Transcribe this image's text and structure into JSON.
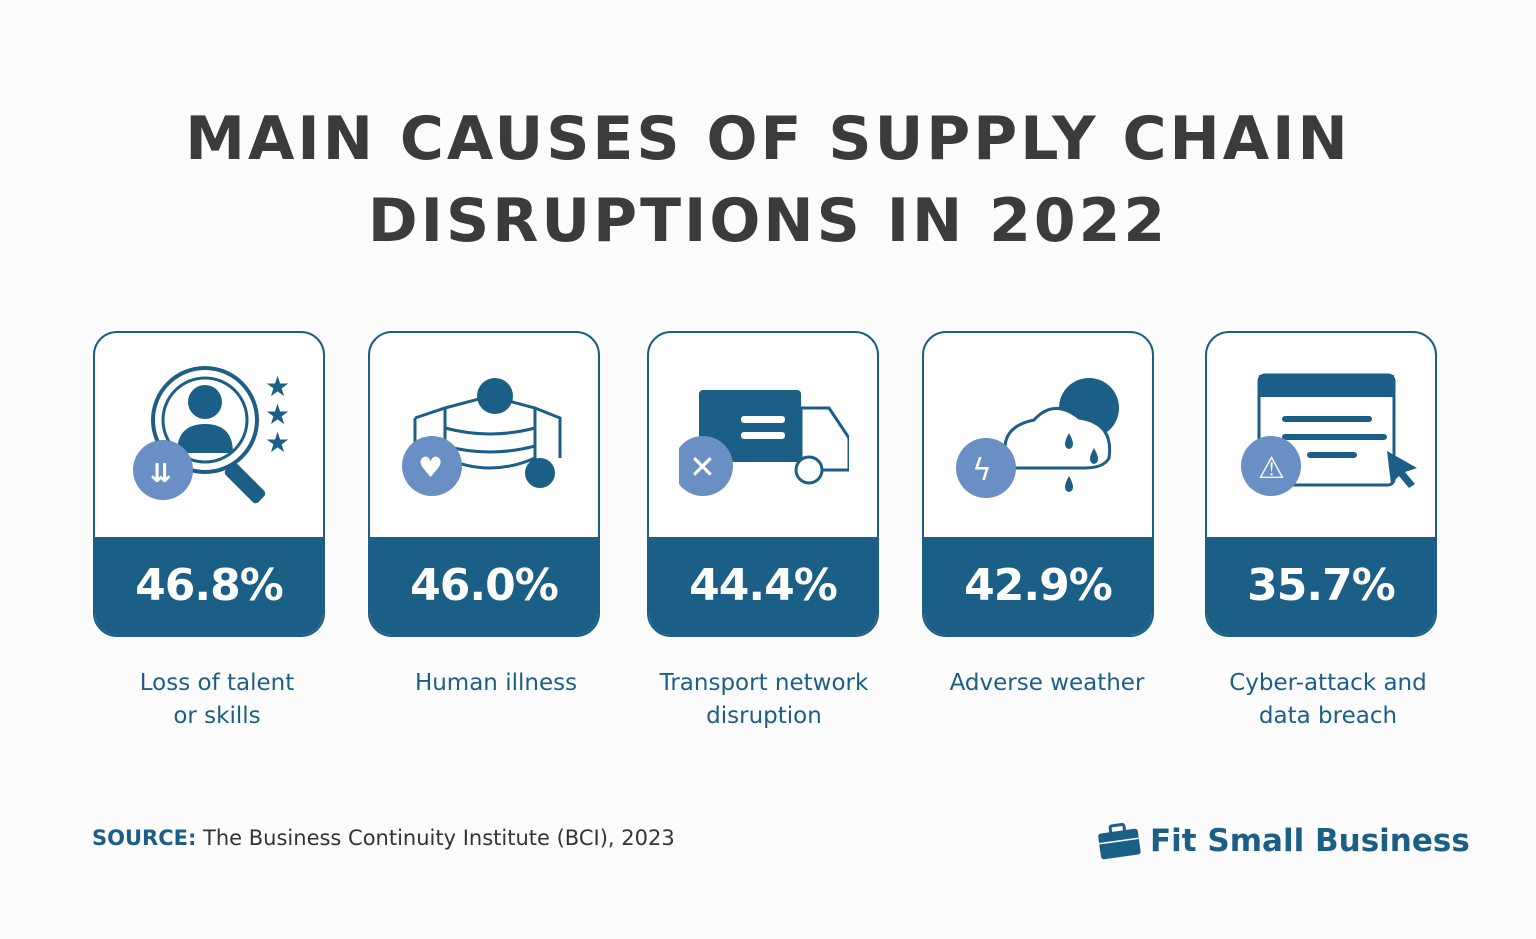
{
  "title_line1": "MAIN CAUSES OF SUPPLY CHAIN",
  "title_line2": "DISRUPTIONS IN 2022",
  "colors": {
    "primary": "#1c5f86",
    "accent": "#6a8fc4",
    "text": "#3b3b3b"
  },
  "cards": [
    {
      "value": "46.8%",
      "label1": "Loss of talent",
      "label2": "or skills",
      "icon": "talent-search-icon"
    },
    {
      "value": "46.0%",
      "label1": "Human illness",
      "label2": "",
      "icon": "mask-virus-icon"
    },
    {
      "value": "44.4%",
      "label1": "Transport network",
      "label2": "disruption",
      "icon": "truck-x-icon"
    },
    {
      "value": "42.9%",
      "label1": "Adverse weather",
      "label2": "",
      "icon": "weather-storm-icon"
    },
    {
      "value": "35.7%",
      "label1": "Cyber-attack and",
      "label2": "data breach",
      "icon": "browser-warning-icon"
    }
  ],
  "source": {
    "label": "SOURCE:",
    "text": " The Business Continuity Institute (BCI), 2023"
  },
  "logo": {
    "text": "Fit Small Business"
  }
}
